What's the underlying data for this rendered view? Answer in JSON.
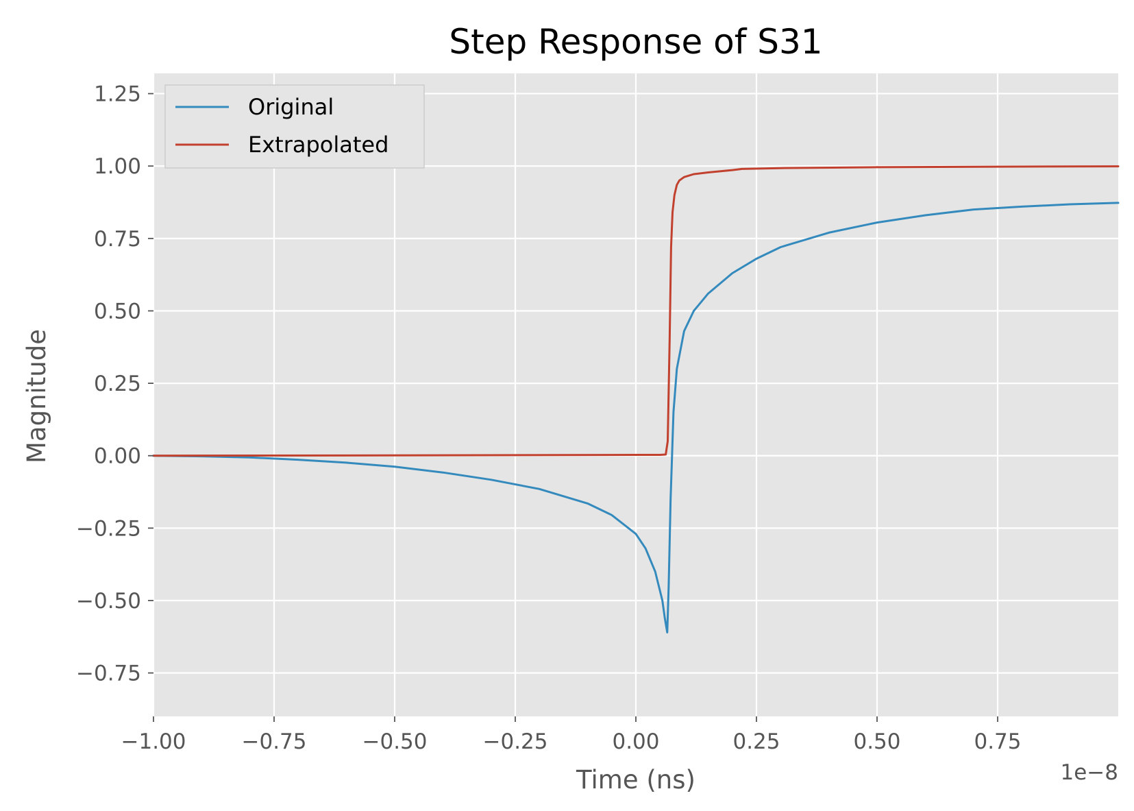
{
  "chart_data": {
    "type": "line",
    "title": "Step Response of S31",
    "xlabel": "Time (ns)",
    "ylabel": "Magnitude",
    "x_offset_text": "1e−8",
    "xlim": [
      -1.0,
      1.0
    ],
    "ylim": [
      -0.9,
      1.32
    ],
    "xticks": [
      -1.0,
      -0.75,
      -0.5,
      -0.25,
      0.0,
      0.25,
      0.5,
      0.75
    ],
    "xtick_labels": [
      "−1.00",
      "−0.75",
      "−0.50",
      "−0.25",
      "0.00",
      "0.25",
      "0.50",
      "0.75"
    ],
    "yticks": [
      -0.75,
      -0.5,
      -0.25,
      0.0,
      0.25,
      0.5,
      0.75,
      1.0,
      1.25
    ],
    "ytick_labels": [
      "−0.75",
      "−0.50",
      "−0.25",
      "0.00",
      "0.25",
      "0.50",
      "0.75",
      "1.00",
      "1.25"
    ],
    "grid": true,
    "legend_position": "top-left",
    "background_color": "#e5e5e5",
    "grid_color": "#ffffff",
    "series": [
      {
        "name": "Original",
        "color": "#348abd",
        "x": [
          -1.0,
          -0.9,
          -0.8,
          -0.7,
          -0.6,
          -0.5,
          -0.4,
          -0.3,
          -0.2,
          -0.1,
          -0.05,
          0.0,
          0.02,
          0.04,
          0.055,
          0.06,
          0.065,
          0.068,
          0.072,
          0.078,
          0.085,
          0.1,
          0.12,
          0.15,
          0.2,
          0.25,
          0.3,
          0.4,
          0.5,
          0.6,
          0.7,
          0.8,
          0.9,
          1.0
        ],
        "y": [
          0.0,
          -0.002,
          -0.006,
          -0.014,
          -0.024,
          -0.038,
          -0.058,
          -0.083,
          -0.115,
          -0.165,
          -0.205,
          -0.27,
          -0.32,
          -0.4,
          -0.5,
          -0.56,
          -0.61,
          -0.45,
          -0.15,
          0.15,
          0.3,
          0.43,
          0.5,
          0.56,
          0.63,
          0.68,
          0.72,
          0.77,
          0.805,
          0.83,
          0.85,
          0.86,
          0.868,
          0.873
        ]
      },
      {
        "name": "Extrapolated",
        "color": "#c1402e",
        "x": [
          -1.0,
          -0.5,
          0.0,
          0.05,
          0.062,
          0.066,
          0.07,
          0.073,
          0.076,
          0.08,
          0.085,
          0.09,
          0.1,
          0.12,
          0.15,
          0.2,
          0.22,
          0.3,
          0.5,
          0.75,
          1.0
        ],
        "y": [
          0.0,
          0.001,
          0.003,
          0.003,
          0.004,
          0.05,
          0.4,
          0.72,
          0.84,
          0.9,
          0.935,
          0.95,
          0.962,
          0.972,
          0.978,
          0.986,
          0.99,
          0.993,
          0.996,
          0.998,
          0.999
        ]
      }
    ]
  }
}
